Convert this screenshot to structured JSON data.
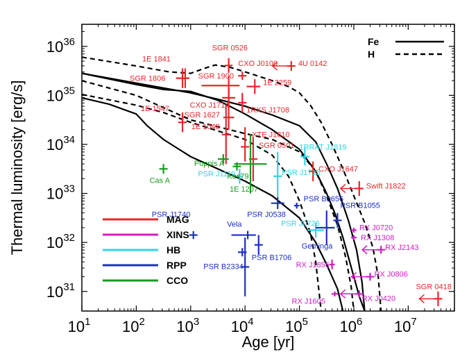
{
  "chart_data": {
    "type": "scatter",
    "xlabel": "Age [yr]",
    "ylabel": "Thermal luminosity [erg/s]",
    "xscale": "log",
    "yscale": "log",
    "xlim_log10": [
      1,
      7.85
    ],
    "ylim_log10": [
      30.6,
      36.45
    ],
    "x_ticks": [
      {
        "exp": 1,
        "label": "10",
        "sup": "1"
      },
      {
        "exp": 2,
        "label": "10",
        "sup": "2"
      },
      {
        "exp": 3,
        "label": "10",
        "sup": "3"
      },
      {
        "exp": 4,
        "label": "10",
        "sup": "4"
      },
      {
        "exp": 5,
        "label": "10",
        "sup": "5"
      },
      {
        "exp": 6,
        "label": "10",
        "sup": "6"
      },
      {
        "exp": 7,
        "label": "10",
        "sup": "7"
      }
    ],
    "y_ticks": [
      {
        "exp": 31,
        "label": "10",
        "sup": "31"
      },
      {
        "exp": 32,
        "label": "10",
        "sup": "32"
      },
      {
        "exp": 33,
        "label": "10",
        "sup": "33"
      },
      {
        "exp": 34,
        "label": "10",
        "sup": "34"
      },
      {
        "exp": 35,
        "label": "10",
        "sup": "35"
      },
      {
        "exp": 36,
        "label": "10",
        "sup": "36"
      }
    ],
    "legend_classes": [
      {
        "name": "MAG",
        "color": "#e8262a"
      },
      {
        "name": "XINS",
        "color": "#d21dc5"
      },
      {
        "name": "HB",
        "color": "#2fd6e4"
      },
      {
        "name": "RPP",
        "color": "#1b2fc4"
      },
      {
        "name": "CCO",
        "color": "#179a1e"
      }
    ],
    "legend_curves": [
      {
        "name": "Fe",
        "style": "solid"
      },
      {
        "name": "H",
        "style": "dashed"
      }
    ],
    "curves": [
      {
        "style": "dashed",
        "points": [
          [
            1,
            35.78
          ],
          [
            2,
            35.6
          ],
          [
            2.6,
            35.48
          ],
          [
            3,
            35.45
          ],
          [
            3.25,
            35.55
          ],
          [
            3.45,
            35.62
          ],
          [
            3.7,
            35.58
          ],
          [
            4,
            35.48
          ],
          [
            4.5,
            35.3
          ],
          [
            4.8,
            35.18
          ],
          [
            5,
            35.05
          ],
          [
            5.2,
            34.8
          ],
          [
            5.4,
            34.45
          ],
          [
            5.6,
            34.0
          ],
          [
            5.8,
            33.5
          ],
          [
            6,
            32.95
          ],
          [
            6.2,
            32.4
          ],
          [
            6.35,
            31.9
          ],
          [
            6.45,
            31.3
          ],
          [
            6.5,
            30.6
          ]
        ]
      },
      {
        "style": "solid",
        "points": [
          [
            1,
            35.45
          ],
          [
            2,
            35.25
          ],
          [
            3,
            35.05
          ],
          [
            3.5,
            34.92
          ],
          [
            4,
            34.78
          ],
          [
            4.5,
            34.6
          ],
          [
            5,
            34.38
          ],
          [
            5.3,
            34.05
          ],
          [
            5.5,
            33.6
          ],
          [
            5.7,
            33.1
          ],
          [
            5.9,
            32.45
          ],
          [
            6.05,
            31.85
          ],
          [
            6.15,
            31.2
          ],
          [
            6.2,
            30.6
          ]
        ]
      },
      {
        "style": "dashed",
        "points": [
          [
            1,
            35.3
          ],
          [
            2,
            35.0
          ],
          [
            2.4,
            34.8
          ],
          [
            3,
            34.5
          ],
          [
            4,
            34.22
          ],
          [
            4.5,
            34.1
          ],
          [
            5,
            33.85
          ],
          [
            5.3,
            33.45
          ],
          [
            5.5,
            32.95
          ],
          [
            5.7,
            32.35
          ],
          [
            5.85,
            31.7
          ],
          [
            5.95,
            31.1
          ],
          [
            6,
            30.6
          ]
        ]
      },
      {
        "style": "dashed",
        "points": [
          [
            1,
            35.02
          ],
          [
            2,
            34.8
          ],
          [
            2.5,
            34.65
          ],
          [
            3,
            34.45
          ],
          [
            4,
            34.1
          ],
          [
            4.5,
            33.78
          ],
          [
            4.8,
            33.35
          ],
          [
            5,
            32.85
          ],
          [
            5.2,
            32.2
          ],
          [
            5.3,
            31.6
          ],
          [
            5.35,
            31.1
          ],
          [
            5.4,
            30.6
          ]
        ]
      },
      {
        "style": "solid",
        "points": [
          [
            1,
            34.95
          ],
          [
            1.5,
            34.82
          ],
          [
            2,
            34.62
          ],
          [
            2.2,
            34.38
          ],
          [
            2.5,
            34.1
          ],
          [
            3,
            33.75
          ],
          [
            3.5,
            33.5
          ],
          [
            4,
            33.25
          ],
          [
            4.5,
            32.95
          ],
          [
            5,
            32.5
          ],
          [
            5.3,
            32.0
          ],
          [
            5.5,
            31.55
          ],
          [
            5.7,
            31.05
          ],
          [
            5.8,
            30.6
          ]
        ]
      },
      {
        "style": "solid",
        "points": [
          [
            1,
            35.45
          ],
          [
            2,
            35.22
          ],
          [
            2.5,
            35.12
          ],
          [
            3,
            35.08
          ],
          [
            3.5,
            34.9
          ],
          [
            4,
            34.62
          ],
          [
            4.5,
            34.3
          ],
          [
            5,
            33.9
          ],
          [
            5.3,
            33.45
          ],
          [
            5.5,
            33.0
          ],
          [
            5.65,
            32.6
          ],
          [
            5.8,
            32.1
          ],
          [
            5.95,
            31.5
          ],
          [
            6.1,
            30.9
          ],
          [
            6.2,
            30.6
          ]
        ]
      }
    ],
    "points": [
      {
        "name": "SGR 0526",
        "class": "MAG",
        "logx": 3.7,
        "logy": 35.61,
        "xerr": [
          0.07,
          0.07
        ],
        "yerr": [
          0.15,
          0.15
        ],
        "label_dx": -24,
        "label_dy": -22
      },
      {
        "name": "1E 1841",
        "class": "MAG",
        "logx": 2.9,
        "logy": 35.35,
        "xerr": [
          0.0,
          0.0
        ],
        "yerr": [
          0.2,
          0.2
        ],
        "label_dx": -62,
        "label_dy": -24
      },
      {
        "name": "CXO J0100",
        "class": "MAG",
        "logx": 3.95,
        "logy": 35.4,
        "xerr": [
          0.0,
          0.0
        ],
        "yerr": [
          0.0,
          0.0
        ],
        "label_dx": -6,
        "label_dy": -14
      },
      {
        "name": "4U 0142",
        "class": "MAG",
        "logx": 4.85,
        "logy": 35.6,
        "xerr": [
          0.0,
          0.0
        ],
        "yerr": [
          0.1,
          0.1
        ],
        "label_dx": 10,
        "label_dy": 0,
        "arrow": "left"
      },
      {
        "name": "SGR 1806",
        "class": "MAG",
        "logx": 2.85,
        "logy": 35.35,
        "xerr": [
          0.12,
          0.12
        ],
        "yerr": [
          0.2,
          0.2
        ],
        "label_dx": -76,
        "label_dy": 4
      },
      {
        "name": "SGR 1900",
        "class": "MAG",
        "logx": 3.7,
        "logy": 35.2,
        "xerr": [
          0.5,
          0.2
        ],
        "yerr": [
          0.35,
          0.2
        ],
        "label_dx": -44,
        "label_dy": -10
      },
      {
        "name": "1E 2259",
        "class": "MAG",
        "logx": 4.18,
        "logy": 35.18,
        "xerr": [
          0.15,
          0.1
        ],
        "yerr": [
          0.15,
          0.15
        ],
        "label_dx": 12,
        "label_dy": -2
      },
      {
        "name": "CXO J1714",
        "class": "MAG",
        "logx": 3.7,
        "logy": 34.95,
        "xerr": [
          0.12,
          0.12
        ],
        "yerr": [
          0.2,
          0.2
        ],
        "label_dx": -56,
        "label_dy": 14
      },
      {
        "name": "1RXS J1708",
        "class": "MAG",
        "logx": 3.95,
        "logy": 34.85,
        "xerr": [
          0.0,
          0.0
        ],
        "yerr": [
          0.2,
          0.2
        ],
        "label_dx": 6,
        "label_dy": 14
      },
      {
        "name": "1E 1547",
        "class": "MAG",
        "logx": 2.85,
        "logy": 34.45,
        "xerr": [
          0.0,
          0.0
        ],
        "yerr": [
          0.2,
          0.2
        ],
        "label_dx": -60,
        "label_dy": -16
      },
      {
        "name": "SGR 1627",
        "class": "MAG",
        "logx": 3.7,
        "logy": 34.55,
        "xerr": [
          0.1,
          0.1
        ],
        "yerr": [
          0.25,
          0.25
        ],
        "label_dx": -64,
        "label_dy": 0
      },
      {
        "name": "1E 1048",
        "class": "MAG",
        "logx": 3.65,
        "logy": 34.2,
        "xerr": [
          0.0,
          0.0
        ],
        "yerr": [
          0.6,
          0.6
        ],
        "label_dx": -50,
        "label_dy": -8
      },
      {
        "name": "XTE J1810",
        "class": "MAG",
        "logx": 4.0,
        "logy": 33.95,
        "xerr": [
          0.0,
          0.0
        ],
        "yerr": [
          0.3,
          0.4
        ],
        "label_dx": 10,
        "label_dy": -14
      },
      {
        "name": "SGR 0501",
        "class": "MAG",
        "logx": 4.15,
        "logy": 33.7,
        "xerr": [
          0.0,
          0.0
        ],
        "yerr": [
          0.45,
          0.45
        ],
        "label_dx": 8,
        "label_dy": -16
      },
      {
        "name": "CXO J1647",
        "class": "MAG",
        "logx": 5.25,
        "logy": 33.45,
        "xerr": [
          0.0,
          0.0
        ],
        "yerr": [
          0.2,
          0.2
        ],
        "label_dx": 8,
        "label_dy": 0
      },
      {
        "name": "Swift J1822",
        "class": "MAG",
        "logx": 6.1,
        "logy": 33.1,
        "xerr": [
          0.0,
          0.0
        ],
        "yerr": [
          0.15,
          0.15
        ],
        "label_dx": 10,
        "label_dy": 0,
        "arrow": "left"
      },
      {
        "name": "SGR 0418",
        "class": "MAG",
        "logx": 7.55,
        "logy": 30.85,
        "xerr": [
          0.0,
          0.0
        ],
        "yerr": [
          0.15,
          0.15
        ],
        "label_dx": -32,
        "label_dy": -14,
        "arrow": "left"
      },
      {
        "name": "RX J0720",
        "class": "XINS",
        "logx": 6.0,
        "logy": 32.25,
        "xerr": [
          0.05,
          0.05
        ],
        "yerr": [
          0.05,
          0.05
        ],
        "label_dx": 8,
        "label_dy": 0
      },
      {
        "name": "RX J1308",
        "class": "XINS",
        "logx": 6.0,
        "logy": 32.1,
        "xerr": [
          0.05,
          0.05
        ],
        "yerr": [
          0.05,
          0.05
        ],
        "label_dx": 10,
        "label_dy": 4
      },
      {
        "name": "RX J2143",
        "class": "XINS",
        "logx": 6.5,
        "logy": 31.85,
        "xerr": [
          0.0,
          0.0
        ],
        "yerr": [
          0.08,
          0.08
        ],
        "label_dx": 6,
        "label_dy": 0,
        "arrow": "left"
      },
      {
        "name": "RX J1856",
        "class": "XINS",
        "logx": 5.6,
        "logy": 31.55,
        "xerr": [
          0.05,
          0.05
        ],
        "yerr": [
          0.1,
          0.1
        ],
        "label_dx": -52,
        "label_dy": 4
      },
      {
        "name": "RX J0806",
        "class": "XINS",
        "logx": 6.3,
        "logy": 31.3,
        "xerr": [
          0.0,
          0.0
        ],
        "yerr": [
          0.08,
          0.08
        ],
        "label_dx": 6,
        "label_dy": 0,
        "arrow": "left"
      },
      {
        "name": "RX J1605",
        "class": "XINS",
        "logx": 5.65,
        "logy": 30.95,
        "xerr": [
          0.06,
          0.06
        ],
        "yerr": [
          0.05,
          0.05
        ],
        "label_dx": -62,
        "label_dy": 14
      },
      {
        "name": "RX J0420",
        "class": "XINS",
        "logx": 6.1,
        "logy": 30.95,
        "xerr": [
          0.0,
          0.0
        ],
        "yerr": [
          0.07,
          0.07
        ],
        "label_dx": 4,
        "label_dy": 10,
        "arrow": "left"
      },
      {
        "name": "PSR J1119",
        "class": "HB",
        "logx": 3.9,
        "logy": 33.35,
        "xerr": [
          0.05,
          0.05
        ],
        "yerr": [
          0.15,
          0.15
        ],
        "label_dx": -60,
        "label_dy": 0
      },
      {
        "name": "PSR J1718",
        "class": "HB",
        "logx": 4.6,
        "logy": 33.35,
        "xerr": [
          0.0,
          0.0
        ],
        "yerr": [
          0.5,
          0.5
        ],
        "label_dx": 6,
        "label_dy": -2
      },
      {
        "name": "1RRAT J1819",
        "class": "HB",
        "logx": 5.1,
        "logy": 33.75,
        "xerr": [
          0.0,
          0.0
        ],
        "yerr": [
          0.18,
          0.18
        ],
        "label_dx": -8,
        "label_dy": -10
      },
      {
        "name": "PSR J0726",
        "class": "HB",
        "logx": 5.3,
        "logy": 32.25,
        "xerr": [
          0.15,
          0.15
        ],
        "yerr": [
          0.15,
          0.15
        ],
        "label_dx": -50,
        "label_dy": -6
      },
      {
        "name": "PSR J1740",
        "class": "RPP",
        "logx": 3.05,
        "logy": 32.15,
        "xerr": [
          0.0,
          0.0
        ],
        "yerr": [
          0.08,
          0.08
        ],
        "label_dx": -60,
        "label_dy": -26
      },
      {
        "name": "Vela",
        "class": "RPP",
        "logx": 4.05,
        "logy": 32.15,
        "xerr": [
          0.3,
          0.15
        ],
        "yerr": [
          0.0,
          0.0
        ],
        "label_dx": -30,
        "label_dy": -12
      },
      {
        "name": "PSR J0538",
        "class": "RPP",
        "logx": 4.6,
        "logy": 32.8,
        "xerr": [
          0.12,
          0.12
        ],
        "yerr": [
          0.12,
          0.12
        ],
        "label_dx": -44,
        "label_dy": 20
      },
      {
        "name": "PSR B0656",
        "class": "RPP",
        "logx": 4.95,
        "logy": 32.75,
        "xerr": [
          0.05,
          0.05
        ],
        "yerr": [
          0.06,
          0.06
        ],
        "label_dx": 10,
        "label_dy": -6
      },
      {
        "name": "PSR B1055",
        "class": "RPP",
        "logx": 5.7,
        "logy": 32.45,
        "xerr": [
          0.0,
          0.0
        ],
        "yerr": [
          0.15,
          0.15
        ],
        "label_dx": 4,
        "label_dy": -18
      },
      {
        "name": "Geminga",
        "class": "RPP",
        "logx": 5.5,
        "logy": 32.3,
        "xerr": [
          0.2,
          0.15
        ],
        "yerr": [
          0.35,
          0.35
        ],
        "label_dx": -36,
        "label_dy": 30
      },
      {
        "name": "PSR B2334",
        "class": "RPP",
        "logx": 3.95,
        "logy": 31.8,
        "xerr": [
          0.08,
          0.08
        ],
        "yerr": [
          0.0,
          0.0
        ],
        "label_dx": -56,
        "label_dy": 24
      },
      {
        "name": "PSR B1706",
        "class": "RPP",
        "logx": 4.25,
        "logy": 31.95,
        "xerr": [
          0.0,
          0.0
        ],
        "yerr": [
          0.2,
          0.2
        ],
        "label_dx": -10,
        "label_dy": 22
      },
      {
        "name": "PSR J1740b",
        "class": "RPP",
        "logx": 4.0,
        "logy": 31.5,
        "xerr": [
          0.0,
          0.0
        ],
        "yerr": [
          0.6,
          0.6
        ],
        "label_dx": 0,
        "label_dy": 0,
        "nolabel": true
      },
      {
        "name": "Cas A",
        "class": "CCO",
        "logx": 2.5,
        "logy": 33.5,
        "xerr": [
          0.0,
          0.0
        ],
        "yerr": [
          0.1,
          0.1
        ],
        "label_dx": -20,
        "label_dy": 20
      },
      {
        "name": "Puppis A",
        "class": "CCO",
        "logx": 3.6,
        "logy": 33.7,
        "xerr": [
          0.1,
          0.1
        ],
        "yerr": [
          0.1,
          0.1
        ],
        "label_dx": -42,
        "label_dy": 10
      },
      {
        "name": "Kes79",
        "class": "CCO",
        "logx": 3.85,
        "logy": 33.55,
        "xerr": [
          0.0,
          0.0
        ],
        "yerr": [
          0.0,
          0.0
        ],
        "label_dx": -14,
        "label_dy": 18
      },
      {
        "name": "1E 1207",
        "class": "CCO",
        "logx": 4.1,
        "logy": 33.6,
        "xerr": [
          0.3,
          0.3
        ],
        "yerr": [
          0.6,
          0.6
        ],
        "label_dx": -30,
        "label_dy": 40
      }
    ]
  }
}
